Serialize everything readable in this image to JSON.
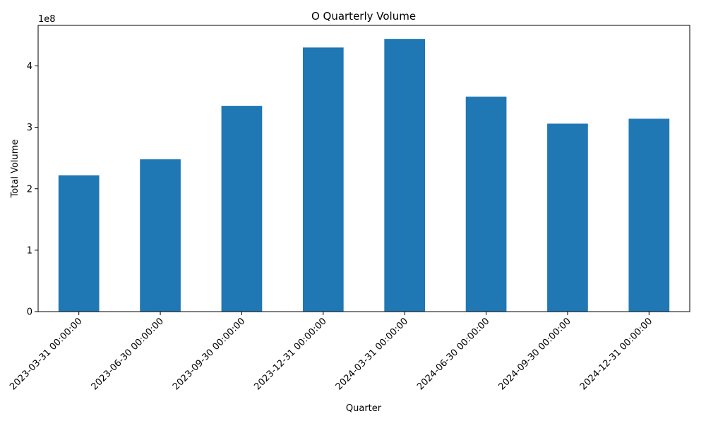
{
  "chart_data": {
    "type": "bar",
    "title": "O Quarterly Volume",
    "xlabel": "Quarter",
    "ylabel": "Total Volume",
    "offset_label": "1e8",
    "categories": [
      "2023-03-31 00:00:00",
      "2023-06-30 00:00:00",
      "2023-09-30 00:00:00",
      "2023-12-31 00:00:00",
      "2024-03-31 00:00:00",
      "2024-06-30 00:00:00",
      "2024-09-30 00:00:00",
      "2024-12-31 00:00:00"
    ],
    "values": [
      222000000,
      248000000,
      335000000,
      430000000,
      444000000,
      350000000,
      306000000,
      314000000
    ],
    "yticks": [
      0,
      100000000,
      200000000,
      300000000,
      400000000
    ],
    "ytick_labels": [
      "0",
      "1",
      "2",
      "3",
      "4"
    ],
    "ylim": [
      0,
      466000000
    ],
    "bar_color": "#1f77b4",
    "grid": false,
    "legend": "none"
  }
}
